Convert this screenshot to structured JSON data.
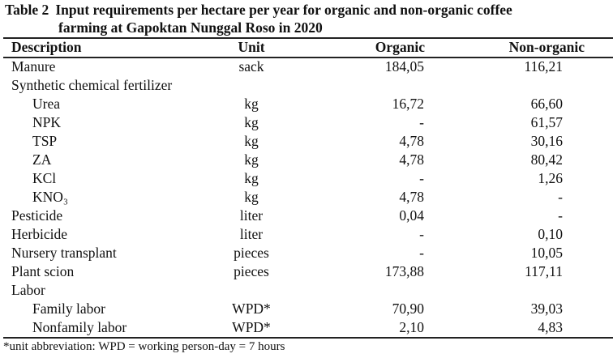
{
  "title": {
    "label": "Table 2",
    "line1": "Input requirements per hectare per year for organic and non-organic coffee",
    "line2": "farming at Gapoktan Nunggal Roso in 2020"
  },
  "headers": {
    "description": "Description",
    "unit": "Unit",
    "organic": "Organic",
    "non_organic": "Non-organic"
  },
  "rows": [
    {
      "description": "Manure",
      "unit": "sack",
      "organic": "184,05",
      "non_organic": "116,21",
      "indent": false
    },
    {
      "description": "Synthetic chemical fertilizer",
      "unit": "",
      "organic": "",
      "non_organic": "",
      "indent": false
    },
    {
      "description": "Urea",
      "unit": "kg",
      "organic": "16,72",
      "non_organic": "66,60",
      "indent": true
    },
    {
      "description": "NPK",
      "unit": "kg",
      "organic": "-",
      "non_organic": "61,57",
      "indent": true
    },
    {
      "description": "TSP",
      "unit": "kg",
      "organic": "4,78",
      "non_organic": "30,16",
      "indent": true
    },
    {
      "description": "ZA",
      "unit": "kg",
      "organic": "4,78",
      "non_organic": "80,42",
      "indent": true
    },
    {
      "description": "KCl",
      "unit": "kg",
      "organic": "-",
      "non_organic": "1,26",
      "indent": true
    },
    {
      "description": "KNO₃",
      "unit": "kg",
      "organic": "4,78",
      "non_organic": "-",
      "indent": true
    },
    {
      "description": "Pesticide",
      "unit": "liter",
      "organic": "0,04",
      "non_organic": "-",
      "indent": false
    },
    {
      "description": "Herbicide",
      "unit": "liter",
      "organic": "-",
      "non_organic": "0,10",
      "indent": false
    },
    {
      "description": "Nursery transplant",
      "unit": "pieces",
      "organic": "-",
      "non_organic": "10,05",
      "indent": false
    },
    {
      "description": "Plant scion",
      "unit": "pieces",
      "organic": "173,88",
      "non_organic": "117,11",
      "indent": false
    },
    {
      "description": "Labor",
      "unit": "",
      "organic": "",
      "non_organic": "",
      "indent": false
    },
    {
      "description": "Family labor",
      "unit": "WPD*",
      "organic": "70,90",
      "non_organic": "39,03",
      "indent": true
    },
    {
      "description": "Nonfamily labor",
      "unit": "WPD*",
      "organic": "2,10",
      "non_organic": "4,83",
      "indent": true
    }
  ],
  "footnote": "*unit abbreviation: WPD = working person-day = 7 hours"
}
